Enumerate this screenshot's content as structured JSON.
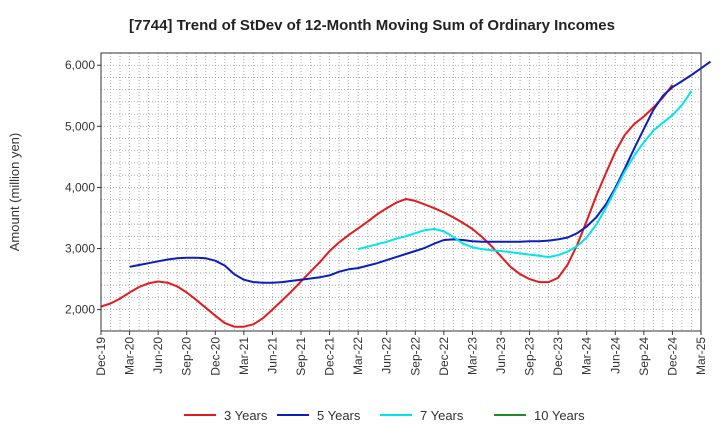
{
  "chart_data": {
    "type": "line",
    "title": "[7744]  Trend of StDev of 12-Month Moving Sum of Ordinary Incomes",
    "xlabel": "",
    "ylabel": "Amount (million yen)",
    "ylim": [
      1650,
      6200
    ],
    "yticks": [
      2000,
      3000,
      4000,
      5000,
      6000
    ],
    "ytick_labels": [
      "2,000",
      "3,000",
      "4,000",
      "5,000",
      "6,000"
    ],
    "x_start": "Dec-19",
    "x_tick_labels": [
      "Dec-19",
      "Mar-20",
      "Jun-20",
      "Sep-20",
      "Dec-20",
      "Mar-21",
      "Jun-21",
      "Sep-21",
      "Dec-21",
      "Mar-22",
      "Jun-22",
      "Sep-22",
      "Dec-22",
      "Mar-23",
      "Jun-23",
      "Sep-23",
      "Dec-23",
      "Mar-24",
      "Jun-24",
      "Sep-24",
      "Dec-24",
      "Mar-25"
    ],
    "grid": true,
    "legend_position": "bottom",
    "series": [
      {
        "name": "3 Years",
        "color": "#e41a1c",
        "start_month": 0,
        "values": [
          2050,
          2100,
          2180,
          2280,
          2370,
          2430,
          2460,
          2440,
          2380,
          2280,
          2160,
          2030,
          1900,
          1780,
          1720,
          1720,
          1760,
          1860,
          2000,
          2150,
          2300,
          2460,
          2620,
          2780,
          2960,
          3100,
          3220,
          3330,
          3440,
          3560,
          3660,
          3750,
          3810,
          3780,
          3720,
          3660,
          3590,
          3510,
          3420,
          3320,
          3190,
          3040,
          2870,
          2700,
          2580,
          2500,
          2450,
          2450,
          2520,
          2740,
          3060,
          3450,
          3860,
          4230,
          4580,
          4860,
          5040,
          5160,
          5310,
          5470,
          5680
        ]
      },
      {
        "name": "5 Years",
        "color": "#0a1ebe",
        "start_month": 3,
        "values": [
          2700,
          2730,
          2760,
          2790,
          2820,
          2840,
          2850,
          2850,
          2840,
          2800,
          2720,
          2580,
          2490,
          2450,
          2440,
          2440,
          2450,
          2470,
          2490,
          2510,
          2530,
          2560,
          2620,
          2660,
          2680,
          2720,
          2760,
          2810,
          2860,
          2910,
          2960,
          3010,
          3080,
          3140,
          3150,
          3140,
          3120,
          3110,
          3110,
          3110,
          3110,
          3110,
          3120,
          3120,
          3130,
          3150,
          3180,
          3250,
          3360,
          3510,
          3720,
          3990,
          4310,
          4640,
          4960,
          5270,
          5500,
          5640,
          5740,
          5840,
          5950,
          6060
        ]
      },
      {
        "name": "7 Years",
        "color": "#00e5ee",
        "start_month": 27,
        "values": [
          2990,
          3030,
          3070,
          3110,
          3160,
          3200,
          3250,
          3300,
          3320,
          3280,
          3190,
          3080,
          3020,
          2990,
          2970,
          2960,
          2940,
          2920,
          2900,
          2880,
          2860,
          2890,
          2950,
          3040,
          3180,
          3390,
          3660,
          3960,
          4260,
          4520,
          4740,
          4930,
          5060,
          5180,
          5350,
          5580
        ]
      },
      {
        "name": "10 Years",
        "color": "#228b22",
        "start_month": 0,
        "values": []
      }
    ]
  }
}
